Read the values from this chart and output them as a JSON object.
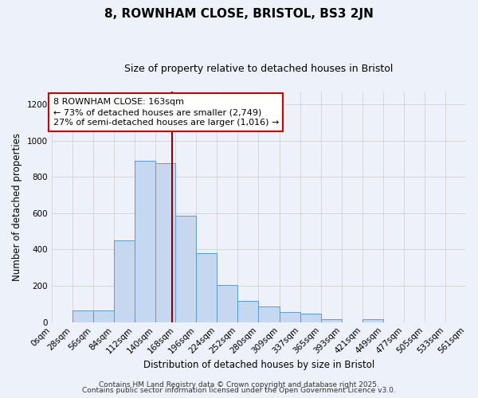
{
  "title": "8, ROWNHAM CLOSE, BRISTOL, BS3 2JN",
  "subtitle": "Size of property relative to detached houses in Bristol",
  "xlabel": "Distribution of detached houses by size in Bristol",
  "ylabel": "Number of detached properties",
  "bar_labels": [
    "0sqm",
    "28sqm",
    "56sqm",
    "84sqm",
    "112sqm",
    "140sqm",
    "168sqm",
    "196sqm",
    "224sqm",
    "252sqm",
    "280sqm",
    "309sqm",
    "337sqm",
    "365sqm",
    "393sqm",
    "421sqm",
    "449sqm",
    "477sqm",
    "505sqm",
    "533sqm",
    "561sqm"
  ],
  "bin_edges": [
    0,
    28,
    56,
    84,
    112,
    140,
    168,
    196,
    224,
    252,
    280,
    309,
    337,
    365,
    393,
    421,
    449,
    477,
    505,
    533,
    561
  ],
  "bar_heights": [
    0,
    65,
    65,
    450,
    890,
    875,
    585,
    380,
    205,
    115,
    85,
    55,
    45,
    15,
    0,
    15,
    0,
    0,
    0,
    0
  ],
  "bar_color": "#c5d8f0",
  "bar_edgecolor": "#5b9bd5",
  "vline_x": 163,
  "vline_color": "#8b0000",
  "annotation_line1": "8 ROWNHAM CLOSE: 163sqm",
  "annotation_line2": "← 73% of detached houses are smaller (2,749)",
  "annotation_line3": "27% of semi-detached houses are larger (1,016) →",
  "annotation_box_edgecolor": "#cc0000",
  "annotation_box_facecolor": "#ffffff",
  "ylim": [
    0,
    1270
  ],
  "yticks": [
    0,
    200,
    400,
    600,
    800,
    1000,
    1200
  ],
  "xlim_max": 561,
  "background_color": "#edf1f9",
  "footer_line1": "Contains HM Land Registry data © Crown copyright and database right 2025.",
  "footer_line2": "Contains public sector information licensed under the Open Government Licence v3.0.",
  "title_fontsize": 11,
  "subtitle_fontsize": 9,
  "axis_label_fontsize": 8.5,
  "tick_fontsize": 7.5,
  "annotation_fontsize": 8,
  "footer_fontsize": 6.5
}
